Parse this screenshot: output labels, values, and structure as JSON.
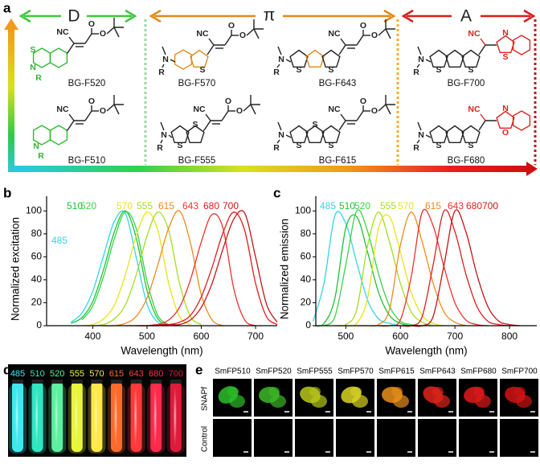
{
  "panel_a": {
    "label": "a",
    "groups": [
      "D",
      "π",
      "A"
    ],
    "molecules": [
      {
        "name": "BG-F520",
        "atoms": [
          "NC",
          "O",
          "O",
          "S",
          "N",
          "R"
        ]
      },
      {
        "name": "BG-F510",
        "atoms": [
          "NC",
          "O",
          "O",
          "N",
          "R"
        ]
      },
      {
        "name": "BG-F570",
        "atoms": [
          "N",
          "R",
          "S",
          "NC",
          "O",
          "O"
        ]
      },
      {
        "name": "BG-F555",
        "atoms": [
          "N",
          "R",
          "S",
          "S",
          "NC",
          "O",
          "O"
        ]
      },
      {
        "name": "BG-F643",
        "atoms": [
          "N",
          "R",
          "S",
          "S",
          "NC",
          "O",
          "O"
        ]
      },
      {
        "name": "BG-F615",
        "atoms": [
          "N",
          "R",
          "S",
          "S",
          "S",
          "NC",
          "O",
          "O"
        ]
      },
      {
        "name": "BG-F700",
        "atoms": [
          "N",
          "R",
          "S",
          "S",
          "NC",
          "N",
          "S"
        ]
      },
      {
        "name": "BG-F680",
        "atoms": [
          "N",
          "R",
          "S",
          "S",
          "NC",
          "N",
          "O"
        ]
      }
    ]
  },
  "chart_data": [
    {
      "type": "line",
      "panel": "b",
      "xlabel": "Wavelength (nm)",
      "ylabel": "Normalized excitation",
      "xlim": [
        315,
        740
      ],
      "ylim": [
        0,
        110
      ],
      "xticks": [
        400,
        500,
        600,
        700
      ],
      "yticks": [
        0,
        20,
        40,
        60,
        80,
        100
      ],
      "x": [
        360,
        380,
        400,
        420,
        440,
        460,
        480,
        500,
        520,
        540,
        560,
        580,
        600,
        620,
        640,
        660,
        680,
        700,
        720,
        740
      ],
      "series": [
        {
          "name": "485",
          "color": "#2fd6e6",
          "values": [
            3,
            11,
            30,
            61,
            91,
            98,
            60,
            19,
            3,
            0,
            null,
            null,
            null,
            null,
            null,
            null,
            null,
            null,
            null,
            null
          ]
        },
        {
          "name": "510",
          "color": "#1fbf3a",
          "values": [
            2,
            7,
            21,
            49,
            82,
            100,
            77,
            31,
            6,
            1,
            null,
            null,
            null,
            null,
            null,
            null,
            null,
            null,
            null,
            null
          ]
        },
        {
          "name": "520",
          "color": "#39d444",
          "values": [
            null,
            5,
            17,
            43,
            76,
            99,
            85,
            39,
            9,
            1,
            null,
            null,
            null,
            null,
            null,
            null,
            null,
            null,
            null,
            null
          ]
        },
        {
          "name": "570",
          "color": "#e8e41a",
          "values": [
            null,
            0,
            1,
            6,
            18,
            44,
            78,
            99,
            83,
            37,
            8,
            1,
            null,
            null,
            null,
            null,
            null,
            null,
            null,
            null
          ]
        },
        {
          "name": "555",
          "color": "#a6dc1e",
          "values": [
            null,
            null,
            0,
            1,
            6,
            18,
            44,
            78,
            99,
            83,
            37,
            8,
            1,
            null,
            null,
            null,
            null,
            null,
            null,
            null
          ]
        },
        {
          "name": "615",
          "color": "#ef8a1c",
          "values": [
            null,
            null,
            null,
            0,
            0,
            2,
            8,
            24,
            53,
            85,
            100,
            72,
            27,
            5,
            0,
            null,
            null,
            null,
            null,
            null
          ]
        },
        {
          "name": "643",
          "color": "#f0302c",
          "values": [
            null,
            null,
            null,
            null,
            null,
            0,
            0,
            0,
            1,
            5,
            16,
            40,
            73,
            97,
            85,
            32,
            5,
            0,
            null,
            null
          ]
        },
        {
          "name": "680",
          "color": "#e01c1c",
          "values": [
            null,
            null,
            null,
            null,
            null,
            null,
            0,
            0,
            1,
            1,
            3,
            9,
            25,
            51,
            81,
            99,
            83,
            37,
            8,
            1
          ]
        },
        {
          "name": "700",
          "color": "#c41414",
          "values": [
            null,
            null,
            null,
            null,
            null,
            null,
            null,
            0,
            0,
            1,
            1,
            5,
            16,
            37,
            67,
            93,
            98,
            60,
            19,
            3
          ]
        }
      ]
    },
    {
      "type": "line",
      "panel": "c",
      "xlabel": "Wavelength (nm)",
      "ylabel": "Normalized emission",
      "xlim": [
        445,
        850
      ],
      "ylim": [
        0,
        110
      ],
      "xticks": [
        500,
        600,
        700,
        800
      ],
      "yticks": [
        0,
        20,
        40,
        60,
        80,
        100
      ],
      "x": [
        440,
        460,
        480,
        500,
        520,
        540,
        560,
        580,
        600,
        620,
        640,
        660,
        680,
        700,
        720,
        740,
        760,
        780,
        800,
        820,
        840
      ],
      "series": [
        {
          "name": "485",
          "color": "#2fd6e6",
          "values": [
            4,
            37,
            96,
            89,
            55,
            22,
            6,
            2,
            0,
            null,
            null,
            null,
            null,
            null,
            null,
            null,
            null,
            null,
            null,
            null,
            null
          ]
        },
        {
          "name": "510",
          "color": "#1fbf3a",
          "values": [
            0,
            2,
            24,
            85,
            95,
            64,
            29,
            9,
            2,
            0,
            null,
            null,
            null,
            null,
            null,
            null,
            null,
            null,
            null,
            null,
            null
          ]
        },
        {
          "name": "520",
          "color": "#39d444",
          "values": [
            null,
            0,
            8,
            53,
            100,
            82,
            45,
            17,
            4,
            1,
            0,
            null,
            null,
            null,
            null,
            null,
            null,
            null,
            null,
            null,
            null
          ]
        },
        {
          "name": "555",
          "color": "#a6dc1e",
          "values": [
            null,
            null,
            0,
            1,
            14,
            70,
            99,
            73,
            37,
            12,
            3,
            0,
            null,
            null,
            null,
            null,
            null,
            null,
            null,
            null,
            null
          ]
        },
        {
          "name": "570",
          "color": "#e8e41a",
          "values": [
            null,
            null,
            null,
            0,
            2,
            24,
            85,
            95,
            64,
            29,
            9,
            2,
            0,
            null,
            null,
            null,
            null,
            null,
            null,
            null,
            null
          ]
        },
        {
          "name": "615",
          "color": "#ef8a1c",
          "values": [
            null,
            null,
            null,
            null,
            0,
            0,
            1,
            14,
            70,
            99,
            73,
            37,
            12,
            3,
            0,
            null,
            null,
            null,
            null,
            null,
            null
          ]
        },
        {
          "name": "643",
          "color": "#f0302c",
          "values": [
            null,
            null,
            null,
            null,
            null,
            null,
            0,
            0,
            5,
            43,
            99,
            87,
            51,
            20,
            5,
            1,
            0,
            null,
            null,
            null,
            null
          ]
        },
        {
          "name": "680",
          "color": "#e01c1c",
          "values": [
            null,
            null,
            null,
            null,
            null,
            null,
            null,
            null,
            0,
            0,
            8,
            53,
            100,
            82,
            45,
            17,
            4,
            1,
            0,
            null,
            null
          ]
        },
        {
          "name": "700",
          "color": "#c41414",
          "values": [
            null,
            null,
            null,
            null,
            null,
            null,
            null,
            null,
            null,
            0,
            0,
            8,
            53,
            100,
            82,
            45,
            17,
            4,
            1,
            0,
            null
          ]
        }
      ]
    }
  ],
  "panel_d": {
    "label": "d",
    "samples": [
      "485",
      "510",
      "520",
      "555",
      "570",
      "615",
      "643",
      "680",
      "700"
    ],
    "colors": [
      "#3fe8f0",
      "#30e6c0",
      "#5cf0a0",
      "#e8f53a",
      "#ffe84a",
      "#ff6a2a",
      "#ff3a3a",
      "#ff2a4a",
      "#e01a3a"
    ]
  },
  "panel_e": {
    "label": "e",
    "columns": [
      "SmFP510",
      "SmFP520",
      "SmFP555",
      "SmFP570",
      "SmFP615",
      "SmFP643",
      "SmFP680",
      "SmFP700"
    ],
    "rows": [
      "SNAPf",
      "Control"
    ],
    "colors": [
      "#2ec02a",
      "#3cb828",
      "#b8c81a",
      "#d8d424",
      "#e8901c",
      "#e0241c",
      "#e01a1a",
      "#d01414"
    ]
  }
}
